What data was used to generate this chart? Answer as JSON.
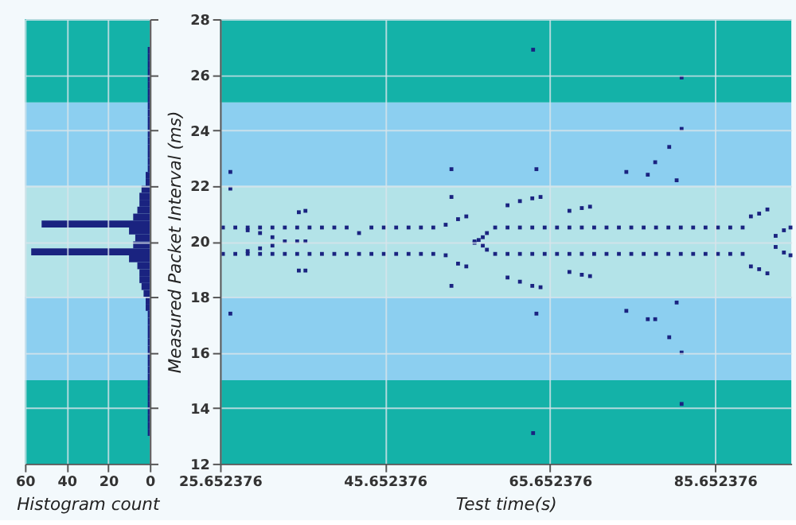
{
  "chart_data": [
    {
      "type": "histogram",
      "orientation": "horizontal",
      "xlabel": "Histogram count",
      "color": "#1a2380",
      "bins": [
        13,
        13.25,
        13.5,
        13.75,
        14,
        14.25,
        14.5,
        14.75,
        15,
        15.25,
        15.5,
        15.75,
        16,
        16.25,
        16.5,
        16.75,
        17,
        17.25,
        17.5,
        17.75,
        18,
        18.25,
        18.5,
        18.75,
        19,
        19.25,
        19.5,
        19.75,
        20,
        20.25,
        20.5,
        20.75,
        21,
        21.25,
        21.5,
        21.75,
        22,
        22.25,
        22.5,
        22.75,
        23,
        23.25,
        23.5,
        23.75,
        24,
        24.25,
        24.5,
        24.75,
        25,
        25.25,
        25.5,
        25.75,
        26,
        26.25,
        26.5,
        26.75,
        27
      ],
      "values": [
        1,
        1,
        1,
        1,
        1,
        1,
        1,
        1,
        1,
        1,
        1,
        1,
        1,
        1,
        1,
        1,
        1,
        1,
        2,
        2,
        3,
        4,
        5,
        5,
        6,
        10,
        57,
        8,
        7,
        10,
        52,
        8,
        6,
        5,
        5,
        4,
        2,
        2,
        1,
        1,
        1,
        1,
        1,
        1,
        1,
        1,
        1,
        1,
        1,
        1,
        1,
        1,
        1,
        1,
        1,
        1
      ],
      "xlim": [
        60,
        0
      ],
      "xticks": [
        60,
        40,
        20,
        0
      ],
      "ylim": [
        12,
        28
      ],
      "yticks": [
        12,
        14,
        16,
        18,
        20,
        22,
        24,
        26,
        28
      ],
      "grid": true,
      "tick_labels": "x",
      "bands": [
        {
          "axis": "y",
          "from": 12,
          "to": 15,
          "color": "#14b2a8"
        },
        {
          "axis": "y",
          "from": 15,
          "to": 18,
          "color": "#8ccff0"
        },
        {
          "axis": "y",
          "from": 18,
          "to": 22,
          "color": "#b3e3e8"
        },
        {
          "axis": "y",
          "from": 22,
          "to": 25,
          "color": "#8ccff0"
        },
        {
          "axis": "y",
          "from": 25,
          "to": 28,
          "color": "#14b2a8"
        }
      ]
    },
    {
      "type": "scatter",
      "xlabel": "Test time(s)",
      "ylabel": "Measured Packet Interval (ms)",
      "marker": "square",
      "grid": true,
      "xlim": [
        25.652376,
        94.9
      ],
      "xticks": [
        25.652376,
        45.652376,
        65.652376,
        85.652376
      ],
      "ylim": [
        12,
        28
      ],
      "yticks": [
        12,
        14,
        16,
        18,
        20,
        22,
        24,
        26,
        28
      ],
      "bands": [
        {
          "axis": "y",
          "from": 12,
          "to": 15,
          "color": "#14b2a8"
        },
        {
          "axis": "y",
          "from": 15,
          "to": 18,
          "color": "#8ccff0"
        },
        {
          "axis": "y",
          "from": 18,
          "to": 22,
          "color": "#b3e3e8"
        },
        {
          "axis": "y",
          "from": 22,
          "to": 25,
          "color": "#8ccff0"
        },
        {
          "axis": "y",
          "from": 25,
          "to": 28,
          "color": "#14b2a8"
        }
      ],
      "series": [
        {
          "color": "#1a2380",
          "x": [
            26,
            27.5,
            29,
            30.5,
            32,
            33.5,
            35,
            36.5,
            38,
            39.5,
            41,
            42.5,
            44,
            45.5,
            47,
            48.5,
            50,
            51.5,
            53,
            54.5,
            55.5,
            56.5,
            57,
            57.5,
            58,
            59,
            60.5,
            62,
            63.5,
            65,
            66.5,
            68,
            69.5,
            71,
            72.5,
            74,
            75.5,
            77,
            78.5,
            80,
            81.5,
            83,
            84.5,
            86,
            87.5,
            89,
            90,
            91,
            92,
            93,
            94,
            94.8,
            26,
            27.5,
            29,
            30.5,
            32,
            33.5,
            35,
            36.5,
            38,
            39.5,
            41,
            42.5,
            44,
            45.5,
            47,
            48.5,
            50,
            51.5,
            53,
            54.5,
            55.5,
            56.5,
            57.5,
            58,
            59,
            60.5,
            62,
            63.5,
            65,
            66.5,
            68,
            69.5,
            71,
            72.5,
            74,
            75.5,
            77,
            78.5,
            80,
            81.5,
            83,
            84.5,
            86,
            87.5,
            89,
            90,
            91,
            92,
            93,
            94,
            94.8,
            29,
            30.5,
            32,
            33.5,
            35,
            36,
            29,
            30.5,
            32,
            35.2,
            36,
            35.2,
            36,
            60.5,
            62,
            63.5,
            64.5,
            60.5,
            62,
            63.5,
            64.5,
            68,
            69.5,
            70.5,
            68,
            69.5,
            70.5,
            26.9,
            26.9,
            26.9,
            53.7,
            53.7,
            53.7,
            63.6,
            81.6,
            81.6,
            80.1,
            78.4,
            78.4,
            80.1,
            81.6,
            81.6,
            63.6,
            64,
            74.9,
            77.5,
            81,
            64,
            74.9,
            77.5,
            81
          ],
          "values": [
            20.5,
            20.5,
            20.5,
            20.5,
            20.5,
            20.5,
            20.5,
            20.5,
            20.5,
            20.5,
            20.5,
            20.3,
            20.5,
            20.5,
            20.5,
            20.5,
            20.5,
            20.5,
            20.6,
            20.8,
            20.9,
            20,
            20.05,
            20.15,
            20.3,
            20.5,
            20.5,
            20.5,
            20.5,
            20.5,
            20.5,
            20.5,
            20.5,
            20.5,
            20.5,
            20.5,
            20.5,
            20.5,
            20.5,
            20.5,
            20.5,
            20.5,
            20.5,
            20.5,
            20.5,
            20.5,
            20.9,
            21,
            21.15,
            20.2,
            20.4,
            20.5,
            19.55,
            19.55,
            19.55,
            19.55,
            19.55,
            19.55,
            19.55,
            19.55,
            19.55,
            19.55,
            19.55,
            19.55,
            19.55,
            19.55,
            19.55,
            19.55,
            19.55,
            19.55,
            19.5,
            19.2,
            19.1,
            19.95,
            19.85,
            19.7,
            19.55,
            19.55,
            19.55,
            19.55,
            19.55,
            19.55,
            19.55,
            19.55,
            19.55,
            19.55,
            19.55,
            19.55,
            19.55,
            19.55,
            19.55,
            19.55,
            19.55,
            19.55,
            19.55,
            19.55,
            19.55,
            19.1,
            19,
            18.85,
            19.8,
            19.6,
            19.5,
            20.4,
            20.3,
            20.15,
            20,
            20,
            20,
            19.65,
            19.75,
            19.85,
            21.05,
            21.1,
            18.95,
            18.95,
            21.3,
            21.45,
            21.55,
            21.6,
            18.7,
            18.55,
            18.4,
            18.35,
            21.1,
            21.2,
            21.25,
            18.9,
            18.8,
            18.75,
            22.5,
            21.9,
            17.4,
            22.6,
            21.6,
            18.4,
            26.9,
            25.9,
            24.05,
            23.4,
            22.85,
            17.2,
            16.55,
            16,
            14.15,
            13.1,
            22.6,
            22.5,
            22.4,
            22.2,
            17.4,
            17.5,
            17.2,
            17.8
          ]
        }
      ]
    }
  ]
}
